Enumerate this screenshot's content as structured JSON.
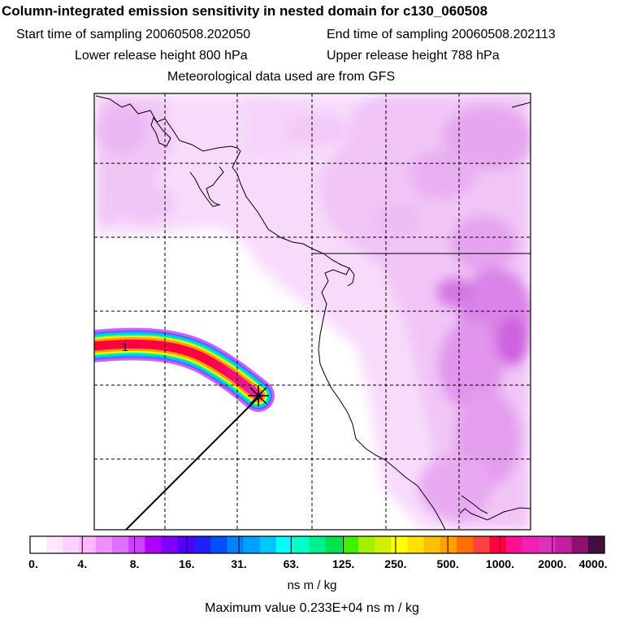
{
  "header": {
    "title": "Column-integrated emission sensitivity in nested domain for c130_060508",
    "start_label": "Start time of sampling 20060508.202050",
    "end_label": "End time of sampling 20060508.202113",
    "lower_label": "Lower release height  800 hPa",
    "upper_label": "Upper release height  788 hPa",
    "met_label": "Meteorological data used are from GFS"
  },
  "map": {
    "release_marker_label": "1"
  },
  "colorbar": {
    "colors": [
      "#ffffff",
      "#ffe8ff",
      "#ffd0ff",
      "#ffb8ff",
      "#f090ff",
      "#e070ff",
      "#d040ff",
      "#b000ff",
      "#8000ff",
      "#5000ff",
      "#2020ff",
      "#0050ff",
      "#0080ff",
      "#00a0ff",
      "#00c8ff",
      "#00ffff",
      "#00ffc8",
      "#00f090",
      "#00e050",
      "#40f000",
      "#a0f000",
      "#d0f000",
      "#ffff00",
      "#ffe000",
      "#ffc000",
      "#ffa000",
      "#ff7000",
      "#ff4040",
      "#ff0040",
      "#ff1090",
      "#f020b0",
      "#e030c0",
      "#c020a0",
      "#901070",
      "#401040"
    ],
    "tick_labels": [
      "0.",
      "4.",
      "8.",
      "16.",
      "31.",
      "63.",
      "125.",
      "250.",
      "500.",
      "1000.",
      "2000.",
      "4000."
    ],
    "units": "ns m / kg"
  },
  "footer": {
    "max_value": "Maximum value  0.233E+04 ns m / kg"
  }
}
